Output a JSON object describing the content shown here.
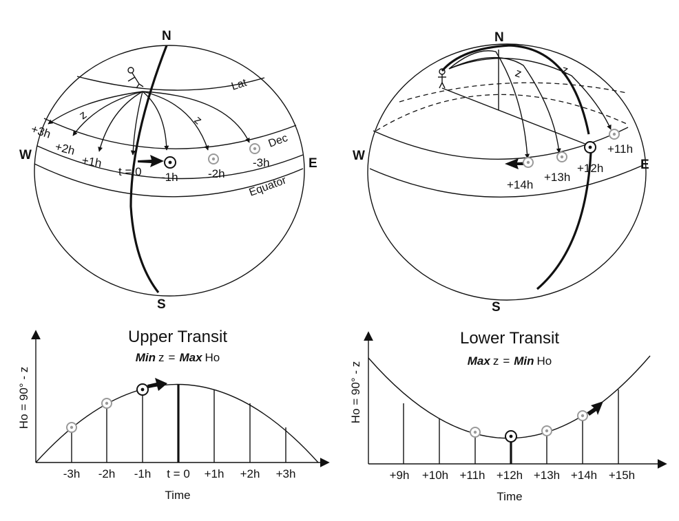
{
  "upper_globe": {
    "north": "N",
    "south": "S",
    "west": "W",
    "east": "E",
    "lat": "Lat",
    "dec": "Dec",
    "equator": "Equator",
    "z_labels": [
      "z",
      "z"
    ],
    "hours": [
      "+3h",
      "+2h",
      "+1h",
      "t = 0",
      "-1h",
      "-2h",
      "-3h"
    ]
  },
  "lower_globe": {
    "north": "N",
    "south": "S",
    "west": "W",
    "east": "E",
    "z_labels": [
      "z",
      "z"
    ],
    "hours": [
      "+11h",
      "+12h",
      "+13h",
      "+14h"
    ]
  },
  "upper_chart": {
    "title": "Upper Transit",
    "subtitle": {
      "a_bold": "Min",
      "a": "z",
      "eq": "=",
      "b_bold": "Max",
      "b": "Ho"
    },
    "ylabel": "Ho = 90° - z",
    "xlabel": "Time",
    "ticks": [
      "-3h",
      "-2h",
      "-1h",
      "t = 0",
      "+1h",
      "+2h",
      "+3h"
    ]
  },
  "lower_chart": {
    "title": "Lower Transit",
    "subtitle": {
      "a_bold": "Max",
      "a": "z",
      "eq": "=",
      "b_bold": "Min",
      "b": "Ho"
    },
    "ylabel": "Ho = 90° - z",
    "xlabel": "Time",
    "ticks": [
      "+9h",
      "+10h",
      "+11h",
      "+12h",
      "+13h",
      "+14h",
      "+15h"
    ]
  },
  "colors": {
    "ink": "#111111",
    "sun_gray": "#9a9a9a",
    "background": "#ffffff"
  }
}
